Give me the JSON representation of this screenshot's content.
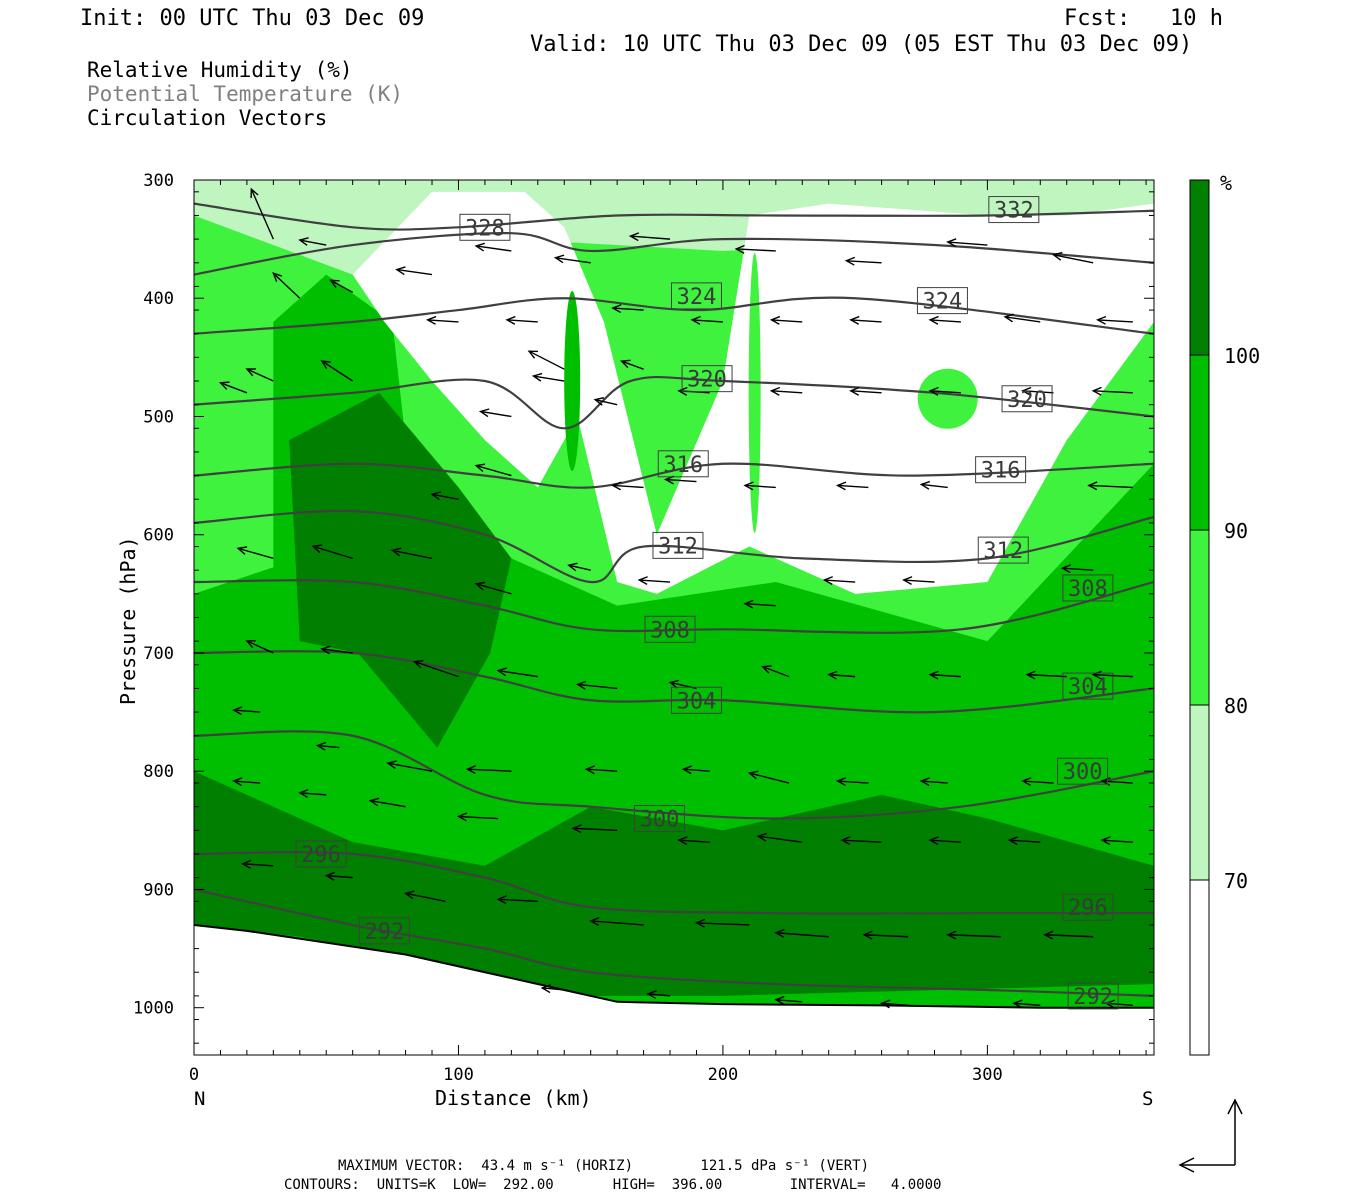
{
  "header": {
    "init": "Init: 00 UTC Thu 03 Dec 09",
    "fcst": "Fcst:   10 h",
    "valid": "Valid: 10 UTC Thu 03 Dec 09 (05 EST Thu 03 Dec 09)"
  },
  "legend": {
    "line1": "Relative Humidity (%)",
    "line2": "Potential Temperature (K)",
    "line3": "Circulation Vectors"
  },
  "footer": {
    "line1": "MAXIMUM VECTOR:  43.4 m s⁻¹ (HORIZ)        121.5 dPa s⁻¹ (VERT)",
    "line2": "CONTOURS:  UNITS=K  LOW=  292.00       HIGH=  396.00        INTERVAL=   4.0000"
  },
  "colors": {
    "rh70": "#bff5bf",
    "rh80": "#3ef23e",
    "rh90": "#00bf00",
    "rh100": "#007f00",
    "theta_line": "#404040",
    "vector": "#000000"
  },
  "chart_data": {
    "type": "cross-section",
    "xlabel": "Distance (km)",
    "ylabel": "Pressure (hPa)",
    "xlim": [
      0,
      363
    ],
    "ylim": [
      1040,
      300
    ],
    "xticks": [
      0,
      100,
      200,
      300
    ],
    "yticks": [
      300,
      400,
      500,
      600,
      700,
      800,
      900,
      1000
    ],
    "x_end_labels": {
      "left": "N",
      "right": "S"
    },
    "colorbar": {
      "unit": "%",
      "levels": [
        70,
        80,
        90,
        100
      ],
      "colors": [
        "#ffffff",
        "#bff5bf",
        "#3ef23e",
        "#00bf00",
        "#007f00"
      ]
    },
    "terrain_pressure": [
      [
        0,
        930
      ],
      [
        20,
        935
      ],
      [
        50,
        945
      ],
      [
        80,
        955
      ],
      [
        110,
        970
      ],
      [
        140,
        985
      ],
      [
        160,
        995
      ],
      [
        200,
        997
      ],
      [
        260,
        998
      ],
      [
        320,
        1000
      ],
      [
        363,
        1000
      ]
    ],
    "rh_fields": {
      "moist_100": [
        [
          [
            0,
            800
          ],
          [
            60,
            860
          ],
          [
            110,
            880
          ],
          [
            150,
            830
          ],
          [
            200,
            850
          ],
          [
            260,
            820
          ],
          [
            300,
            840
          ],
          [
            363,
            880
          ],
          [
            363,
            980
          ],
          [
            200,
            990
          ],
          [
            150,
            990
          ],
          [
            100,
            965
          ],
          [
            40,
            940
          ],
          [
            0,
            930
          ]
        ],
        [
          [
            36,
            520
          ],
          [
            70,
            480
          ],
          [
            100,
            560
          ],
          [
            120,
            620
          ],
          [
            112,
            700
          ],
          [
            92,
            780
          ],
          [
            62,
            700
          ],
          [
            40,
            690
          ]
        ]
      ],
      "dry_lt70": [
        [
          [
            60,
            380
          ],
          [
            90,
            310
          ],
          [
            125,
            310
          ],
          [
            140,
            340
          ],
          [
            155,
            420
          ],
          [
            175,
            600
          ],
          [
            200,
            470
          ],
          [
            210,
            330
          ],
          [
            240,
            320
          ],
          [
            300,
            330
          ],
          [
            330,
            330
          ],
          [
            363,
            320
          ],
          [
            363,
            420
          ],
          [
            330,
            520
          ],
          [
            300,
            640
          ],
          [
            250,
            650
          ],
          [
            210,
            610
          ],
          [
            175,
            650
          ],
          [
            160,
            640
          ],
          [
            145,
            500
          ],
          [
            130,
            560
          ],
          [
            110,
            520
          ],
          [
            90,
            470
          ],
          [
            72,
            420
          ]
        ]
      ]
    },
    "theta_contours": [
      {
        "theta": 332,
        "points": [
          [
            0,
            320
          ],
          [
            60,
            340
          ],
          [
            100,
            340
          ],
          [
            160,
            330
          ],
          [
            220,
            330
          ],
          [
            300,
            330
          ],
          [
            363,
            326
          ]
        ],
        "labels": [
          [
            310,
            325
          ]
        ]
      },
      {
        "theta": 328,
        "points": [
          [
            0,
            380
          ],
          [
            60,
            355
          ],
          [
            120,
            345
          ],
          [
            150,
            360
          ],
          [
            200,
            350
          ],
          [
            280,
            355
          ],
          [
            363,
            370
          ]
        ],
        "labels": [
          [
            110,
            340
          ]
        ]
      },
      {
        "theta": 324,
        "points": [
          [
            0,
            430
          ],
          [
            60,
            420
          ],
          [
            100,
            410
          ],
          [
            140,
            400
          ],
          [
            190,
            410
          ],
          [
            250,
            400
          ],
          [
            363,
            430
          ]
        ],
        "labels": [
          [
            190,
            398
          ],
          [
            283,
            402
          ]
        ]
      },
      {
        "theta": 320,
        "points": [
          [
            0,
            490
          ],
          [
            60,
            480
          ],
          [
            110,
            470
          ],
          [
            140,
            510
          ],
          [
            165,
            470
          ],
          [
            200,
            470
          ],
          [
            280,
            480
          ],
          [
            363,
            500
          ]
        ],
        "labels": [
          [
            194,
            468
          ],
          [
            315,
            485
          ]
        ]
      },
      {
        "theta": 316,
        "points": [
          [
            0,
            550
          ],
          [
            60,
            540
          ],
          [
            110,
            550
          ],
          [
            150,
            560
          ],
          [
            200,
            540
          ],
          [
            270,
            550
          ],
          [
            363,
            540
          ]
        ],
        "labels": [
          [
            185,
            540
          ],
          [
            305,
            545
          ]
        ]
      },
      {
        "theta": 312,
        "points": [
          [
            0,
            590
          ],
          [
            60,
            580
          ],
          [
            110,
            600
          ],
          [
            150,
            640
          ],
          [
            170,
            610
          ],
          [
            230,
            620
          ],
          [
            300,
            620
          ],
          [
            363,
            585
          ]
        ],
        "labels": [
          [
            183,
            609
          ],
          [
            306,
            613
          ]
        ]
      },
      {
        "theta": 308,
        "points": [
          [
            0,
            640
          ],
          [
            60,
            640
          ],
          [
            110,
            660
          ],
          [
            150,
            680
          ],
          [
            200,
            680
          ],
          [
            290,
            680
          ],
          [
            363,
            640
          ]
        ],
        "labels": [
          [
            180,
            680
          ],
          [
            338,
            645
          ]
        ]
      },
      {
        "theta": 304,
        "points": [
          [
            0,
            700
          ],
          [
            60,
            700
          ],
          [
            110,
            720
          ],
          [
            150,
            740
          ],
          [
            200,
            740
          ],
          [
            280,
            750
          ],
          [
            363,
            730
          ]
        ],
        "labels": [
          [
            190,
            740
          ],
          [
            338,
            728
          ]
        ]
      },
      {
        "theta": 300,
        "points": [
          [
            0,
            770
          ],
          [
            60,
            770
          ],
          [
            110,
            820
          ],
          [
            150,
            830
          ],
          [
            220,
            840
          ],
          [
            290,
            830
          ],
          [
            363,
            800
          ]
        ],
        "labels": [
          [
            176,
            840
          ],
          [
            336,
            800
          ]
        ]
      },
      {
        "theta": 296,
        "points": [
          [
            0,
            870
          ],
          [
            60,
            870
          ],
          [
            110,
            890
          ],
          [
            150,
            915
          ],
          [
            220,
            920
          ],
          [
            300,
            920
          ],
          [
            363,
            920
          ]
        ],
        "labels": [
          [
            48,
            870
          ],
          [
            338,
            915
          ]
        ]
      },
      {
        "theta": 292,
        "points": [
          [
            0,
            900
          ],
          [
            60,
            930
          ],
          [
            110,
            950
          ],
          [
            150,
            970
          ],
          [
            220,
            980
          ],
          [
            300,
            985
          ],
          [
            363,
            990
          ]
        ],
        "labels": [
          [
            72,
            935
          ],
          [
            340,
            990
          ]
        ]
      }
    ],
    "vectors": [
      [
        30,
        350,
        -10,
        -50
      ],
      [
        40,
        300,
        -12,
        -40
      ],
      [
        50,
        355,
        -12,
        -5
      ],
      [
        60,
        395,
        -10,
        -12
      ],
      [
        40,
        400,
        -12,
        -25
      ],
      [
        20,
        480,
        -12,
        -10
      ],
      [
        30,
        470,
        -12,
        -12
      ],
      [
        60,
        470,
        -14,
        -20
      ],
      [
        100,
        570,
        -12,
        -5
      ],
      [
        120,
        500,
        -14,
        -5
      ],
      [
        140,
        470,
        -14,
        -5
      ],
      [
        160,
        490,
        -10,
        -5
      ],
      [
        90,
        380,
        -16,
        -5
      ],
      [
        120,
        360,
        -16,
        -5
      ],
      [
        150,
        370,
        -16,
        -5
      ],
      [
        180,
        350,
        -18,
        -3
      ],
      [
        220,
        360,
        -18,
        -2
      ],
      [
        260,
        370,
        -16,
        -2
      ],
      [
        300,
        355,
        -18,
        -3
      ],
      [
        340,
        370,
        -18,
        -8
      ],
      [
        100,
        420,
        -14,
        -2
      ],
      [
        130,
        420,
        -14,
        -2
      ],
      [
        170,
        410,
        -14,
        -2
      ],
      [
        200,
        420,
        -14,
        -2
      ],
      [
        230,
        420,
        -14,
        -2
      ],
      [
        260,
        420,
        -14,
        -2
      ],
      [
        290,
        420,
        -14,
        -2
      ],
      [
        320,
        420,
        -16,
        -5
      ],
      [
        355,
        420,
        -16,
        -2
      ],
      [
        355,
        480,
        -18,
        -2
      ],
      [
        325,
        480,
        -14,
        -2
      ],
      [
        290,
        480,
        -14,
        -2
      ],
      [
        260,
        480,
        -14,
        -2
      ],
      [
        230,
        480,
        -14,
        -2
      ],
      [
        195,
        480,
        -14,
        -2
      ],
      [
        170,
        460,
        -10,
        -8
      ],
      [
        120,
        550,
        -16,
        -10
      ],
      [
        140,
        460,
        -16,
        -18
      ],
      [
        220,
        560,
        -14,
        -2
      ],
      [
        190,
        555,
        -14,
        -2
      ],
      [
        170,
        560,
        -14,
        -2
      ],
      [
        255,
        560,
        -14,
        -2
      ],
      [
        285,
        560,
        -12,
        -3
      ],
      [
        355,
        560,
        -20,
        -2
      ],
      [
        340,
        630,
        -14,
        -2
      ],
      [
        280,
        640,
        -14,
        -2
      ],
      [
        250,
        640,
        -14,
        -2
      ],
      [
        220,
        660,
        -14,
        -2
      ],
      [
        180,
        640,
        -14,
        -2
      ],
      [
        150,
        630,
        -10,
        -5
      ],
      [
        120,
        650,
        -16,
        -10
      ],
      [
        90,
        620,
        -18,
        -8
      ],
      [
        60,
        620,
        -18,
        -12
      ],
      [
        30,
        620,
        -16,
        -10
      ],
      [
        30,
        700,
        -12,
        -12
      ],
      [
        60,
        700,
        -14,
        -4
      ],
      [
        100,
        720,
        -20,
        -15
      ],
      [
        130,
        720,
        -18,
        -6
      ],
      [
        160,
        730,
        -18,
        -4
      ],
      [
        190,
        730,
        -12,
        -6
      ],
      [
        225,
        720,
        -12,
        -10
      ],
      [
        250,
        720,
        -12,
        -2
      ],
      [
        290,
        720,
        -14,
        -2
      ],
      [
        330,
        720,
        -18,
        -2
      ],
      [
        355,
        720,
        -18,
        -2
      ],
      [
        25,
        750,
        -12,
        -2
      ],
      [
        55,
        780,
        -10,
        -2
      ],
      [
        90,
        800,
        -20,
        -8
      ],
      [
        120,
        800,
        -20,
        -2
      ],
      [
        160,
        800,
        -14,
        -2
      ],
      [
        195,
        800,
        -12,
        -2
      ],
      [
        225,
        810,
        -18,
        -10
      ],
      [
        255,
        810,
        -14,
        -2
      ],
      [
        285,
        810,
        -12,
        -2
      ],
      [
        325,
        810,
        -14,
        -2
      ],
      [
        355,
        810,
        -14,
        -2
      ],
      [
        25,
        810,
        -12,
        -2
      ],
      [
        50,
        820,
        -12,
        -2
      ],
      [
        80,
        830,
        -16,
        -6
      ],
      [
        115,
        840,
        -18,
        -2
      ],
      [
        160,
        850,
        -20,
        -2
      ],
      [
        195,
        860,
        -14,
        -2
      ],
      [
        230,
        860,
        -20,
        -6
      ],
      [
        260,
        860,
        -18,
        -2
      ],
      [
        290,
        860,
        -14,
        -2
      ],
      [
        320,
        860,
        -14,
        -2
      ],
      [
        355,
        860,
        -14,
        -2
      ],
      [
        30,
        880,
        -14,
        -2
      ],
      [
        60,
        890,
        -12,
        -2
      ],
      [
        95,
        910,
        -18,
        -8
      ],
      [
        130,
        910,
        -18,
        -2
      ],
      [
        170,
        930,
        -24,
        -4
      ],
      [
        210,
        930,
        -24,
        -2
      ],
      [
        240,
        940,
        -24,
        -4
      ],
      [
        270,
        940,
        -20,
        -2
      ],
      [
        305,
        940,
        -24,
        -2
      ],
      [
        340,
        940,
        -22,
        -2
      ],
      [
        140,
        985,
        -10,
        -2
      ],
      [
        180,
        990,
        -10,
        -2
      ],
      [
        230,
        995,
        -12,
        -2
      ],
      [
        270,
        998,
        -12,
        -2
      ],
      [
        320,
        998,
        -12,
        -2
      ],
      [
        355,
        998,
        -12,
        -2
      ]
    ],
    "max_vector_ms": 43.4,
    "max_vertical_dpas": 121.5,
    "contour_low_K": 292.0,
    "contour_high_K": 396.0,
    "contour_interval_K": 4.0
  }
}
